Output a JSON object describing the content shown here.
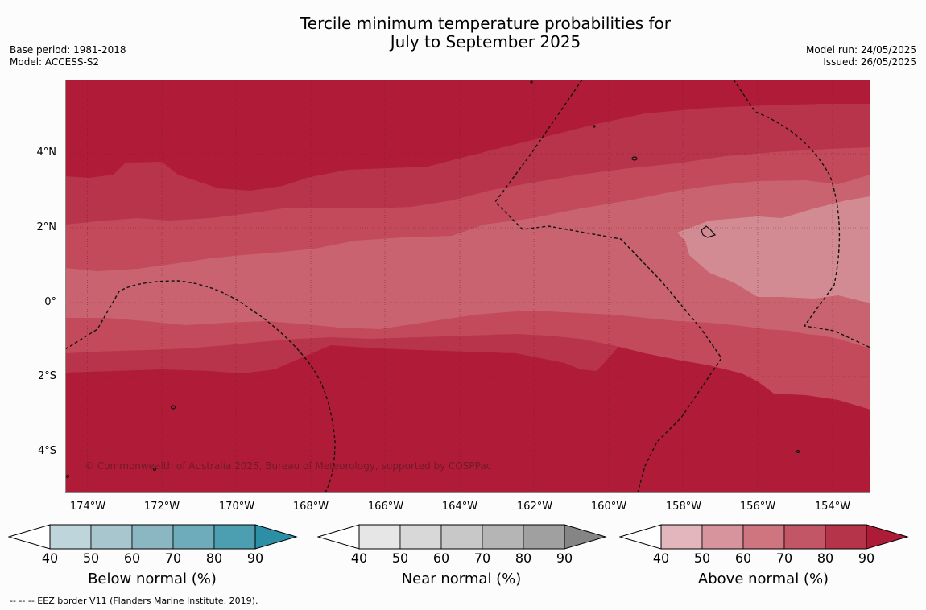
{
  "title_line1": "Tercile minimum temperature probabilities for",
  "title_line2": "July to September 2025",
  "base_period": "Base period: 1981-2018",
  "model": "Model: ACCESS-S2",
  "model_run": "Model run: 24/05/2025",
  "issued": "Issued: 26/05/2025",
  "copyright": "© Commonwealth of Australia 2025, Bureau of Meteorology, supported by COSPPac",
  "footnote": "--  --  -- EEZ border V11 (Flanders Marine Institute, 2019).",
  "lat_labels": [
    "4°N",
    "2°N",
    "0°",
    "2°S",
    "4°S"
  ],
  "lon_labels": [
    "174°W",
    "172°W",
    "170°W",
    "168°W",
    "166°W",
    "164°W",
    "162°W",
    "160°W",
    "158°W",
    "156°W",
    "154°W"
  ],
  "colorbars": [
    {
      "title": "Below normal (%)",
      "ticks": [
        "40",
        "50",
        "60",
        "70",
        "80",
        "90"
      ],
      "colors": [
        "#bfd5dc",
        "#a8c6cd",
        "#8bb7c3",
        "#6eacbb",
        "#4b9fb0",
        "#2c8fa6"
      ]
    },
    {
      "title": "Near normal (%)",
      "ticks": [
        "40",
        "50",
        "60",
        "70",
        "80",
        "90"
      ],
      "colors": [
        "#e6e6e6",
        "#d8d8d8",
        "#c8c8c8",
        "#b5b5b5",
        "#a0a0a0",
        "#858585"
      ]
    },
    {
      "title": "Above normal (%)",
      "ticks": [
        "40",
        "50",
        "60",
        "70",
        "80",
        "90"
      ],
      "colors": [
        "#e3b6bd",
        "#d8949c",
        "#cf7580",
        "#c35666",
        "#b6344a",
        "#ae1b37"
      ]
    }
  ],
  "map_colors": {
    "p90": "#b01c37",
    "p80": "#b8344a",
    "p70": "#c24a5a",
    "p60": "#c9636f",
    "p50": "#d38b93"
  }
}
